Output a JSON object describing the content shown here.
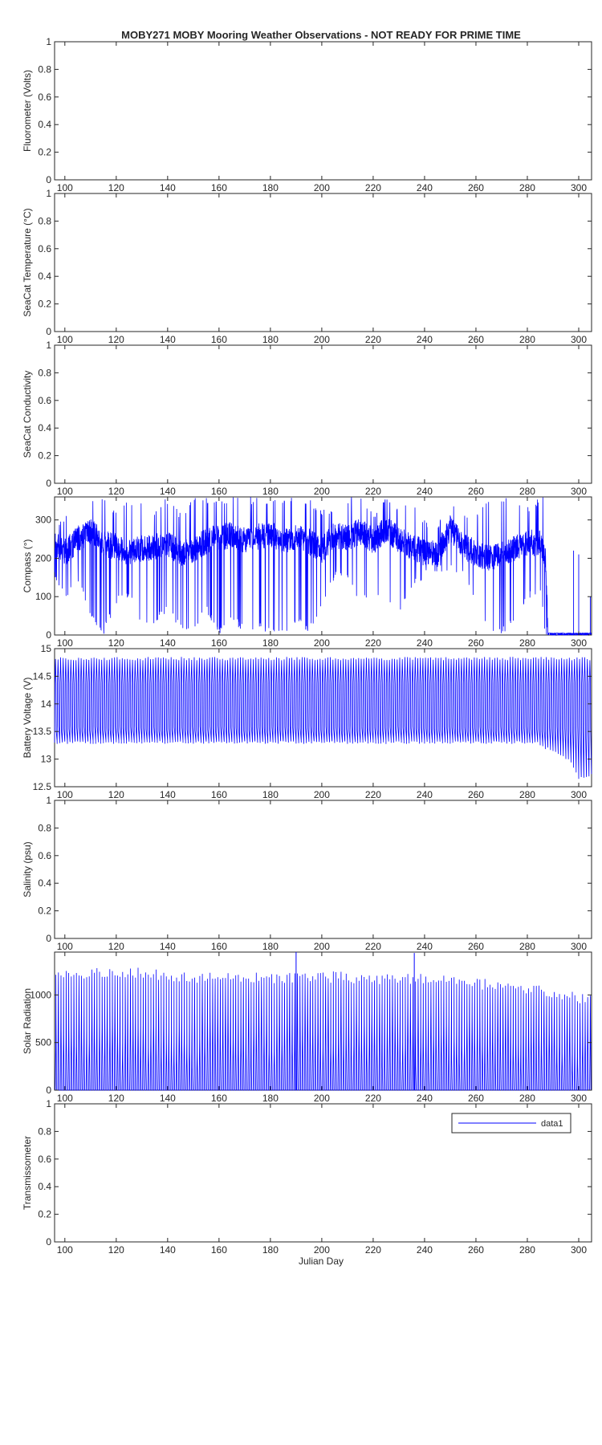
{
  "figure": {
    "title": "MOBY271 MOBY Mooring Weather Observations - NOT READY FOR PRIME TIME",
    "xlabel": "Julian Day"
  },
  "chart_data": [
    {
      "type": "line",
      "ylabel": "Fluorometer (Volts)",
      "xlim": [
        96,
        305
      ],
      "ylim": [
        0,
        1
      ],
      "xticks": [
        "100",
        "120",
        "140",
        "160",
        "180",
        "200",
        "220",
        "240",
        "260",
        "280",
        "300"
      ],
      "yticks": [
        "0",
        "0.2",
        "0.4",
        "0.6",
        "0.8",
        "1"
      ],
      "grid": false,
      "series": []
    },
    {
      "type": "line",
      "ylabel": "SeaCat Temperature (°C)",
      "xlim": [
        96,
        305
      ],
      "ylim": [
        0,
        1
      ],
      "xticks": [
        "100",
        "120",
        "140",
        "160",
        "180",
        "200",
        "220",
        "240",
        "260",
        "280",
        "300"
      ],
      "yticks": [
        "0",
        "0.2",
        "0.4",
        "0.6",
        "0.8",
        "1"
      ],
      "grid": false,
      "series": []
    },
    {
      "type": "line",
      "ylabel": "SeaCat Conductivity",
      "xlim": [
        96,
        305
      ],
      "ylim": [
        0,
        1
      ],
      "xticks": [
        "100",
        "120",
        "140",
        "160",
        "180",
        "200",
        "220",
        "240",
        "260",
        "280",
        "300"
      ],
      "yticks": [
        "0",
        "0.2",
        "0.4",
        "0.6",
        "0.8",
        "1"
      ],
      "grid": false,
      "series": []
    },
    {
      "type": "line",
      "ylabel": "Compass (°)",
      "xlim": [
        96,
        305
      ],
      "ylim": [
        0,
        360
      ],
      "xticks": [
        "100",
        "120",
        "140",
        "160",
        "180",
        "200",
        "220",
        "240",
        "260",
        "280",
        "300"
      ],
      "yticks": [
        "0",
        "100",
        "200",
        "300"
      ],
      "grid": false,
      "color": "#0000ff",
      "series": [
        {
          "x": [
            96,
            100,
            105,
            110,
            115,
            120,
            125,
            130,
            135,
            140,
            145,
            150,
            155,
            160,
            165,
            170,
            175,
            180,
            185,
            190,
            195,
            200,
            205,
            210,
            215,
            220,
            225,
            230,
            235,
            240,
            245,
            250,
            255,
            260,
            265,
            270,
            275,
            280,
            285,
            287,
            288,
            290,
            295,
            300,
            305
          ],
          "y": [
            240,
            215,
            250,
            270,
            240,
            230,
            215,
            225,
            230,
            235,
            215,
            220,
            245,
            255,
            260,
            245,
            255,
            265,
            240,
            255,
            245,
            220,
            260,
            255,
            270,
            245,
            275,
            250,
            230,
            215,
            210,
            280,
            230,
            215,
            200,
            210,
            225,
            240,
            240,
            200,
            5,
            5,
            5,
            5,
            5
          ],
          "min": [
            150,
            90,
            140,
            40,
            0,
            80,
            100,
            20,
            30,
            60,
            10,
            0,
            60,
            0,
            40,
            0,
            20,
            0,
            0,
            30,
            0,
            60,
            150,
            140,
            80,
            100,
            90,
            40,
            120,
            150,
            160,
            170,
            150,
            80,
            0,
            0,
            30,
            90,
            110,
            0,
            0,
            0,
            0,
            0,
            0
          ],
          "max": [
            290,
            310,
            330,
            360,
            360,
            330,
            360,
            350,
            330,
            360,
            320,
            360,
            360,
            360,
            360,
            360,
            360,
            360,
            360,
            360,
            360,
            330,
            330,
            360,
            360,
            320,
            360,
            330,
            360,
            300,
            290,
            360,
            320,
            310,
            360,
            360,
            360,
            340,
            360,
            360,
            5,
            5,
            5,
            5,
            5
          ]
        }
      ]
    },
    {
      "type": "line",
      "ylabel": "Battery Voltage (V)",
      "xlim": [
        96,
        305
      ],
      "ylim": [
        12.5,
        15
      ],
      "xticks": [
        "100",
        "120",
        "140",
        "160",
        "180",
        "200",
        "220",
        "240",
        "260",
        "280",
        "300"
      ],
      "yticks": [
        "12.5",
        "13",
        "13.5",
        "14",
        "14.5",
        "15"
      ],
      "grid": false,
      "color": "#0000ff",
      "series": [
        {
          "cycle_days": 1,
          "x_range": [
            96,
            305
          ],
          "high": 14.85,
          "low": 13.3,
          "plateau": 14.38,
          "late_low": [
            [
              285,
              13.25
            ],
            [
              292,
              13.1
            ],
            [
              297,
              12.95
            ],
            [
              300,
              12.65
            ],
            [
              303,
              12.7
            ]
          ]
        }
      ]
    },
    {
      "type": "line",
      "ylabel": "Salinity (psu)",
      "xlim": [
        96,
        305
      ],
      "ylim": [
        0,
        1
      ],
      "xticks": [
        "100",
        "120",
        "140",
        "160",
        "180",
        "200",
        "220",
        "240",
        "260",
        "280",
        "300"
      ],
      "yticks": [
        "0",
        "0.2",
        "0.4",
        "0.6",
        "0.8",
        "1"
      ],
      "grid": false,
      "series": []
    },
    {
      "type": "line",
      "ylabel": "Solar Radiation",
      "xlim": [
        96,
        305
      ],
      "ylim": [
        0,
        1450
      ],
      "xticks": [
        "100",
        "120",
        "140",
        "160",
        "180",
        "200",
        "220",
        "240",
        "260",
        "280",
        "300"
      ],
      "yticks": [
        "0",
        "500",
        "1000"
      ],
      "grid": false,
      "color": "#0000ff",
      "series": [
        {
          "cycle_days": 1,
          "x_range": [
            96,
            305
          ],
          "night": 0,
          "peak_trend": [
            [
              96,
              1250
            ],
            [
              120,
              1300
            ],
            [
              160,
              1230
            ],
            [
              200,
              1250
            ],
            [
              240,
              1220
            ],
            [
              280,
              1130
            ],
            [
              305,
              1000
            ]
          ],
          "spikes": [
            [
              190,
              1450
            ],
            [
              236,
              1440
            ]
          ]
        }
      ]
    },
    {
      "type": "line",
      "ylabel": "Transmissometer",
      "xlim": [
        96,
        305
      ],
      "ylim": [
        0,
        1
      ],
      "xticks": [
        "100",
        "120",
        "140",
        "160",
        "180",
        "200",
        "220",
        "240",
        "260",
        "280",
        "300"
      ],
      "yticks": [
        "0",
        "0.2",
        "0.4",
        "0.6",
        "0.8",
        "1"
      ],
      "grid": false,
      "legend": {
        "entries": [
          "data1"
        ],
        "position": "top-right",
        "color": "#0000ff"
      },
      "series": []
    }
  ]
}
